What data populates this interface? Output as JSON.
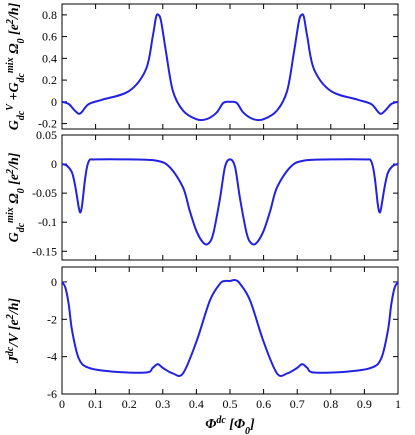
{
  "chart_data": [
    {
      "type": "line",
      "ylabel_parts": [
        "G",
        "dc",
        "V",
        " +G",
        "dc",
        "mix",
        " Ω",
        "0",
        " [e",
        "2",
        "/h]"
      ],
      "xlim": [
        0,
        1
      ],
      "ylim": [
        -0.25,
        0.9
      ],
      "yticks": [
        -0.2,
        0,
        0.2,
        0.4,
        0.6,
        0.8
      ],
      "ytick_labels": [
        "-0.2",
        "0",
        "0.2",
        "0.4",
        "0.6",
        "0.8"
      ],
      "show_xtick_labels": false,
      "x": [
        0,
        0.02,
        0.035,
        0.05,
        0.06,
        0.08,
        0.12,
        0.2,
        0.25,
        0.27,
        0.28,
        0.287,
        0.295,
        0.31,
        0.33,
        0.36,
        0.4,
        0.43,
        0.46,
        0.48,
        0.5,
        0.52,
        0.54,
        0.57,
        0.6,
        0.64,
        0.67,
        0.69,
        0.705,
        0.713,
        0.72,
        0.73,
        0.75,
        0.8,
        0.88,
        0.92,
        0.94,
        0.95,
        0.965,
        0.98,
        1
      ],
      "y": [
        0.0,
        -0.02,
        -0.07,
        -0.11,
        -0.09,
        -0.02,
        0.02,
        0.1,
        0.3,
        0.6,
        0.78,
        0.8,
        0.74,
        0.45,
        0.1,
        -0.08,
        -0.16,
        -0.16,
        -0.1,
        -0.01,
        0.0,
        -0.01,
        -0.1,
        -0.16,
        -0.16,
        -0.08,
        0.1,
        0.45,
        0.74,
        0.8,
        0.78,
        0.6,
        0.3,
        0.1,
        0.02,
        -0.02,
        -0.09,
        -0.11,
        -0.07,
        -0.02,
        0.0
      ]
    },
    {
      "type": "line",
      "ylabel_parts": [
        "G",
        "dc",
        "mix",
        " Ω",
        "0",
        " [e",
        "2",
        "/h]"
      ],
      "xlim": [
        0,
        1
      ],
      "ylim": [
        -0.165,
        0.05
      ],
      "yticks": [
        -0.15,
        -0.1,
        -0.05,
        0,
        0.05
      ],
      "ytick_labels": [
        "-0.15",
        "-0.1",
        "-0.05",
        "0",
        "0.05"
      ],
      "show_xtick_labels": false,
      "x": [
        0,
        0.015,
        0.03,
        0.04,
        0.05,
        0.055,
        0.06,
        0.07,
        0.08,
        0.1,
        0.2,
        0.28,
        0.32,
        0.36,
        0.38,
        0.4,
        0.42,
        0.435,
        0.45,
        0.47,
        0.485,
        0.5,
        0.515,
        0.53,
        0.55,
        0.565,
        0.58,
        0.6,
        0.62,
        0.64,
        0.68,
        0.72,
        0.8,
        0.9,
        0.92,
        0.93,
        0.94,
        0.945,
        0.95,
        0.96,
        0.97,
        0.985,
        1
      ],
      "y": [
        0.0,
        -0.003,
        -0.015,
        -0.04,
        -0.075,
        -0.083,
        -0.07,
        -0.02,
        0.005,
        0.008,
        0.008,
        0.006,
        -0.005,
        -0.04,
        -0.08,
        -0.115,
        -0.135,
        -0.137,
        -0.12,
        -0.06,
        -0.005,
        0.008,
        -0.005,
        -0.06,
        -0.12,
        -0.137,
        -0.135,
        -0.115,
        -0.08,
        -0.04,
        -0.005,
        0.006,
        0.008,
        0.008,
        0.005,
        -0.02,
        -0.07,
        -0.083,
        -0.075,
        -0.04,
        -0.015,
        -0.003,
        0.0
      ]
    },
    {
      "type": "line",
      "ylabel_parts": [
        "J",
        "dc",
        "/V [e",
        "2",
        "/h]"
      ],
      "xlabel_parts": [
        "Φ",
        "dc",
        " [Φ",
        "0",
        "]"
      ],
      "xlim": [
        0,
        1
      ],
      "ylim": [
        -6,
        0.8
      ],
      "yticks": [
        -6,
        -4,
        -2,
        0
      ],
      "ytick_labels": [
        "-6",
        "-4",
        "-2",
        "0"
      ],
      "xticks": [
        0,
        0.1,
        0.2,
        0.3,
        0.4,
        0.5,
        0.6,
        0.7,
        0.8,
        0.9,
        1
      ],
      "xtick_labels": [
        "0",
        "0.1",
        "0.2",
        "0.3",
        "0.4",
        "0.5",
        "0.6",
        "0.7",
        "0.8",
        "0.9",
        "1"
      ],
      "show_xtick_labels": true,
      "x": [
        0,
        0.01,
        0.02,
        0.03,
        0.05,
        0.08,
        0.15,
        0.25,
        0.27,
        0.285,
        0.3,
        0.33,
        0.36,
        0.4,
        0.44,
        0.47,
        0.485,
        0.5,
        0.515,
        0.53,
        0.56,
        0.6,
        0.64,
        0.67,
        0.7,
        0.715,
        0.73,
        0.75,
        0.85,
        0.92,
        0.95,
        0.97,
        0.98,
        0.99,
        1
      ],
      "y": [
        0.0,
        -0.3,
        -1.2,
        -2.6,
        -4.1,
        -4.6,
        -4.8,
        -4.85,
        -4.6,
        -4.4,
        -4.6,
        -4.9,
        -4.9,
        -3.2,
        -1.0,
        -0.1,
        0.05,
        0.05,
        0.1,
        -0.1,
        -1.0,
        -3.2,
        -4.9,
        -4.9,
        -4.6,
        -4.4,
        -4.6,
        -4.85,
        -4.8,
        -4.6,
        -4.1,
        -2.6,
        -1.2,
        -0.3,
        0.0
      ]
    }
  ]
}
